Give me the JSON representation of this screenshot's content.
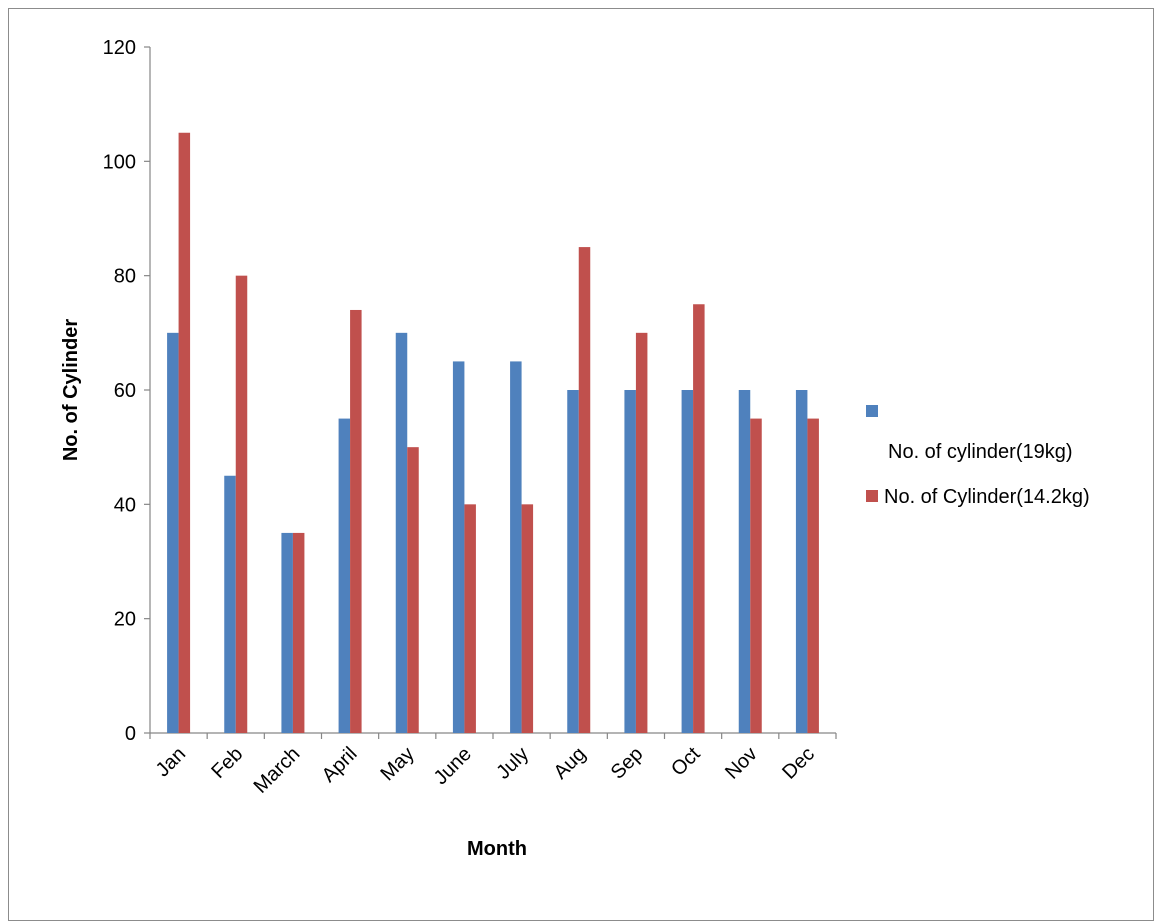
{
  "chart_data": {
    "type": "bar",
    "categories": [
      "Jan",
      "Feb",
      "March",
      "April",
      "May",
      "June",
      "July",
      "Aug",
      "Sep",
      "Oct",
      "Nov",
      "Dec"
    ],
    "series": [
      {
        "name": "No. of cylinder(19kg)",
        "color": "#4F81BD",
        "values": [
          70,
          45,
          35,
          55,
          70,
          65,
          65,
          60,
          60,
          60,
          60,
          60
        ]
      },
      {
        "name": "No. of Cylinder(14.2kg)",
        "color": "#C0504D",
        "values": [
          105,
          80,
          35,
          74,
          50,
          40,
          40,
          85,
          70,
          75,
          55,
          55
        ]
      }
    ],
    "xlabel": "Month",
    "ylabel": "No. of Cylinder",
    "ylim": [
      0,
      120
    ],
    "yticks": [
      "0",
      "20",
      "40",
      "60",
      "80",
      "100",
      "120"
    ],
    "grid": false,
    "legend_position": "right"
  }
}
